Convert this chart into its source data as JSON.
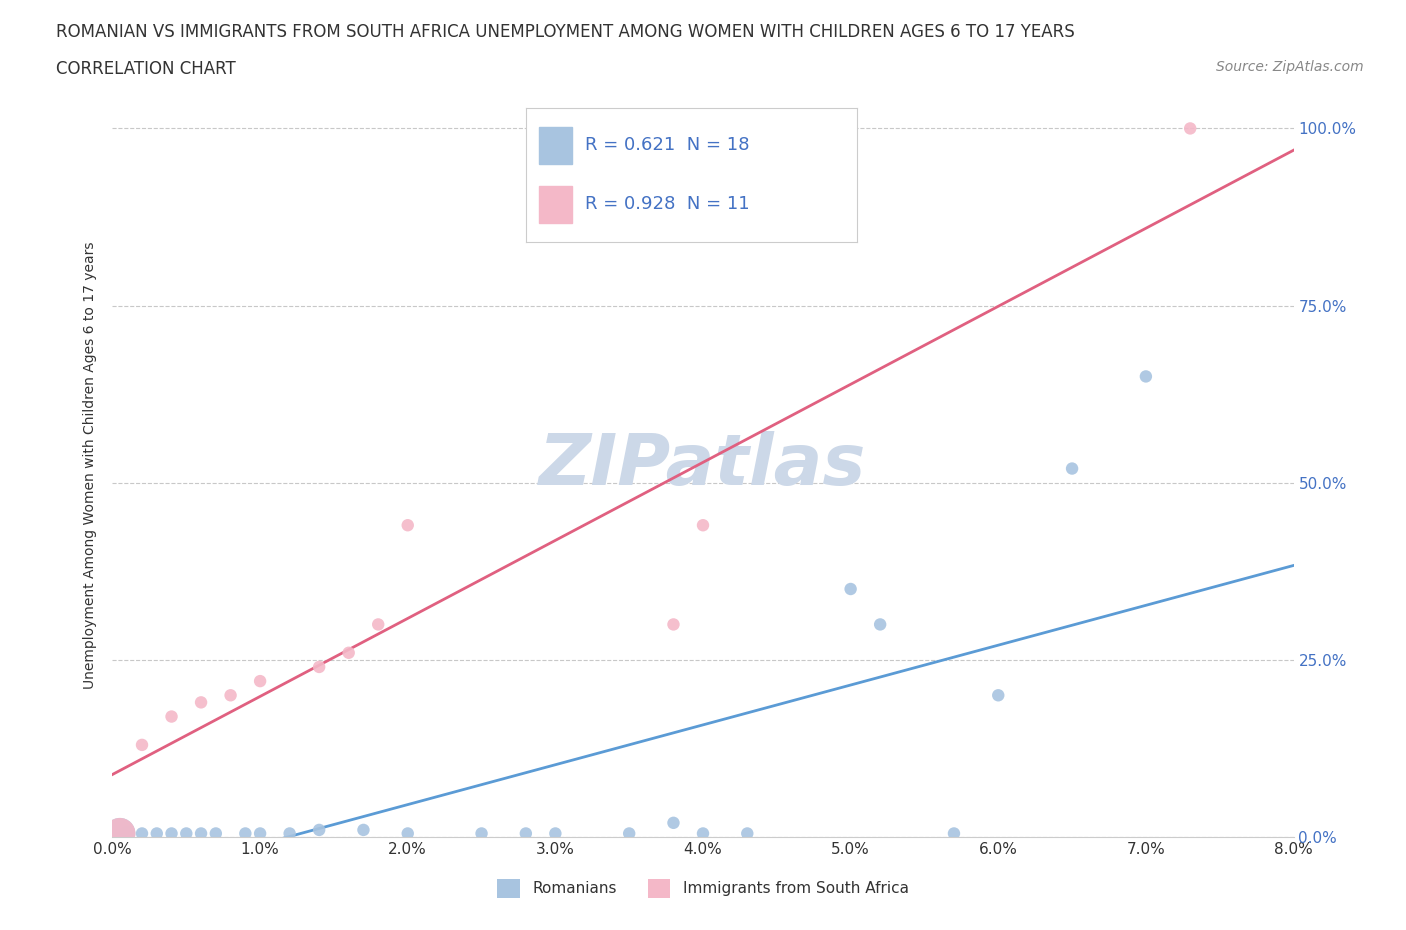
{
  "title_line1": "ROMANIAN VS IMMIGRANTS FROM SOUTH AFRICA UNEMPLOYMENT AMONG WOMEN WITH CHILDREN AGES 6 TO 17 YEARS",
  "title_line2": "CORRELATION CHART",
  "source": "Source: ZipAtlas.com",
  "xlim": [
    0,
    0.08
  ],
  "ylim": [
    0,
    1.05
  ],
  "ylabel": "Unemployment Among Women with Children Ages 6 to 17 years",
  "watermark": "ZIPatlas",
  "romanians_x": [
    0.0005,
    0.001,
    0.002,
    0.003,
    0.004,
    0.005,
    0.006,
    0.007,
    0.009,
    0.01,
    0.012,
    0.014,
    0.017,
    0.02,
    0.025,
    0.028,
    0.03,
    0.035,
    0.038,
    0.04,
    0.043,
    0.05,
    0.052,
    0.057,
    0.06,
    0.065,
    0.07
  ],
  "romanians_y": [
    0.005,
    0.005,
    0.005,
    0.005,
    0.005,
    0.005,
    0.005,
    0.005,
    0.005,
    0.005,
    0.005,
    0.01,
    0.01,
    0.005,
    0.005,
    0.005,
    0.005,
    0.005,
    0.02,
    0.005,
    0.005,
    0.35,
    0.3,
    0.005,
    0.2,
    0.52,
    0.65
  ],
  "romanians_size": [
    500,
    120,
    80,
    80,
    80,
    80,
    80,
    80,
    80,
    80,
    80,
    80,
    80,
    80,
    80,
    80,
    80,
    80,
    80,
    80,
    80,
    80,
    80,
    80,
    80,
    80,
    80
  ],
  "south_africa_x": [
    0.0005,
    0.002,
    0.004,
    0.006,
    0.008,
    0.01,
    0.014,
    0.016,
    0.018,
    0.02,
    0.038,
    0.04,
    0.073
  ],
  "south_africa_y": [
    0.005,
    0.13,
    0.17,
    0.19,
    0.2,
    0.22,
    0.24,
    0.26,
    0.3,
    0.44,
    0.3,
    0.44,
    1.0
  ],
  "south_africa_size": [
    500,
    80,
    80,
    80,
    80,
    80,
    80,
    80,
    80,
    80,
    80,
    80,
    80
  ],
  "romanian_line_color": "#5b9bd5",
  "south_africa_line_color": "#e06080",
  "romanian_scatter_color": "#a8c4e0",
  "south_africa_scatter_color": "#f4b8c8",
  "grid_color": "#c8c8c8",
  "background_color": "#ffffff",
  "title_color": "#333333",
  "watermark_color": "#ccd8e8",
  "axis_label_color": "#333333",
  "tick_label_color": "#4472c4",
  "legend_text_color": "#4472c4",
  "title_fontsize": 12,
  "subtitle_fontsize": 12,
  "source_fontsize": 10,
  "axis_label_fontsize": 10,
  "tick_fontsize": 11,
  "legend_fontsize": 13,
  "watermark_fontsize": 52,
  "r_romanian": 0.621,
  "n_romanian": 18,
  "r_south_africa": 0.928,
  "n_south_africa": 11
}
